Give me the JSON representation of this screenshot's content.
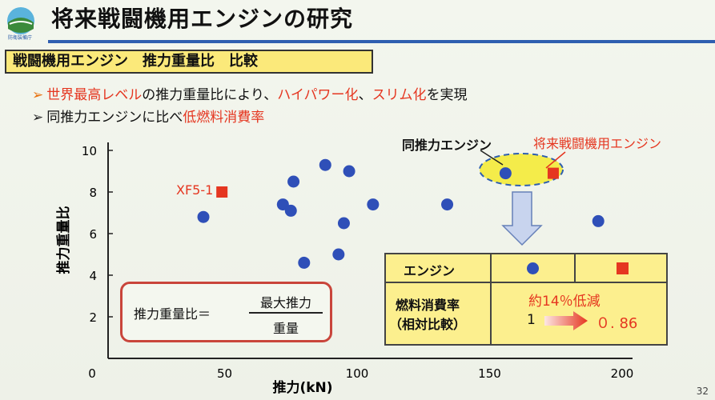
{
  "header": {
    "title": "将来戦闘機用エンジンの研究",
    "logo_text": "防衛装備庁"
  },
  "subtitle": "戦闘機用エンジン　推力重量比　比較",
  "bullets": [
    {
      "mark": "➢",
      "segments": [
        {
          "text": "世界最高レベル",
          "color": "red"
        },
        {
          "text": "の推力重量比により、",
          "color": "black"
        },
        {
          "text": "ハイパワー化",
          "color": "red"
        },
        {
          "text": "、",
          "color": "black"
        },
        {
          "text": "スリム化",
          "color": "red"
        },
        {
          "text": "を実現",
          "color": "black"
        }
      ]
    },
    {
      "mark": "➢",
      "segments": [
        {
          "text": "同推力エンジンに比べ",
          "color": "black"
        },
        {
          "text": "低燃料消費率",
          "color": "red"
        }
      ]
    }
  ],
  "chart_data": {
    "type": "scatter",
    "xlabel": "推力(kN)",
    "ylabel": "推力重量比",
    "xlim": [
      0,
      200
    ],
    "ylim": [
      0,
      10.5
    ],
    "x_ticks": [
      0,
      50,
      100,
      150,
      200
    ],
    "y_ticks": [
      2,
      4,
      6,
      8,
      10
    ],
    "series": [
      {
        "marker": "circle",
        "color": "#2f4fb8",
        "points": [
          [
            42,
            6.8
          ],
          [
            72,
            7.4
          ],
          [
            75,
            7.1
          ],
          [
            76,
            8.5
          ],
          [
            80,
            4.6
          ],
          [
            88,
            9.3
          ],
          [
            93,
            5.0
          ],
          [
            95,
            6.5
          ],
          [
            97,
            9.0
          ],
          [
            106,
            7.4
          ],
          [
            134,
            7.4
          ],
          [
            156,
            8.9
          ],
          [
            191,
            6.6
          ]
        ]
      },
      {
        "marker": "square",
        "color": "#e53620",
        "points": [
          [
            49,
            8.0
          ],
          [
            174,
            8.9
          ]
        ]
      }
    ],
    "annotations": {
      "xf5": {
        "text": "XF5-1",
        "x": 49,
        "y": 8.0
      },
      "same_thrust": {
        "text": "同推力エンジン"
      },
      "future": {
        "text": "将来戦闘機用エンジン"
      }
    }
  },
  "formula": {
    "lhs": "推力重量比＝",
    "numerator": "最大推力",
    "denominator": "重量"
  },
  "comparison_table": {
    "header_label": "エンジン",
    "row_label_1": "燃料消費率",
    "row_label_2": "（相対比較）",
    "reduction": "約14％低減",
    "baseline": "1",
    "result": "０. 86"
  },
  "colors": {
    "accent_red": "#e53620",
    "dot_blue": "#2f4fb8",
    "table_yellow": "#fcef8e",
    "rule_blue": "#2f5fb0"
  },
  "page_number": "32"
}
